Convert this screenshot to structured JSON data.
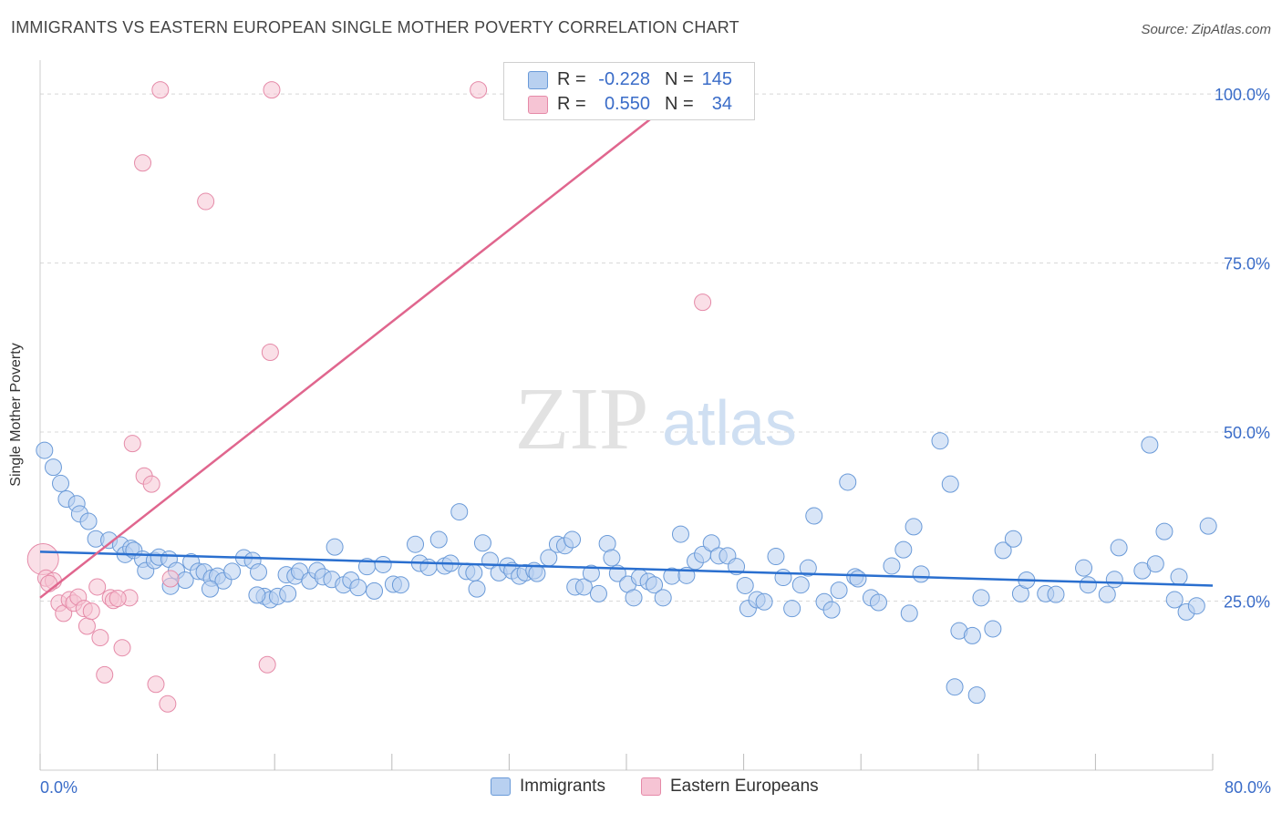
{
  "header": {
    "title": "IMMIGRANTS VS EASTERN EUROPEAN SINGLE MOTHER POVERTY CORRELATION CHART",
    "source": "Source: ZipAtlas.com"
  },
  "watermark": {
    "zip": "ZIP",
    "atlas": "atlas"
  },
  "colors": {
    "blue_fill": "#b8d0f0",
    "blue_stroke": "#6a9ad8",
    "blue_line": "#2a6fcf",
    "pink_fill": "#f6c4d4",
    "pink_stroke": "#e58aa8",
    "pink_line": "#e0668e",
    "axis_text": "#3a6cc8",
    "grid": "#d8d8d8"
  },
  "legend": {
    "rows": [
      {
        "r_label": "R =",
        "r_value": "-0.228",
        "n_label": "N =",
        "n_value": "145"
      },
      {
        "r_label": "R =",
        "r_value": "0.550",
        "n_label": "N =",
        "n_value": "34"
      }
    ]
  },
  "bottom_legend": {
    "series1": "Immigrants",
    "series2": "Eastern Europeans"
  },
  "chart_data": {
    "type": "scatter",
    "title": "IMMIGRANTS VS EASTERN EUROPEAN SINGLE MOTHER POVERTY CORRELATION CHART",
    "xlabel": "",
    "ylabel": "Single Mother Poverty",
    "xlim": [
      0,
      80
    ],
    "ylim": [
      0,
      105
    ],
    "x_tick_labels": [
      "0.0%",
      "80.0%"
    ],
    "y_ticks": [
      25,
      50,
      75,
      100
    ],
    "y_tick_labels": [
      "25.0%",
      "50.0%",
      "75.0%",
      "100.0%"
    ],
    "grid": true,
    "legend_position": "top-center",
    "series": [
      {
        "name": "Immigrants",
        "color": "#6a9ad8",
        "trend": {
          "x": [
            0,
            80
          ],
          "y": [
            32.3,
            27.3
          ]
        },
        "points": [
          [
            0.3,
            47.3
          ],
          [
            0.9,
            44.8
          ],
          [
            1.4,
            42.4
          ],
          [
            1.8,
            40.1
          ],
          [
            2.5,
            39.4
          ],
          [
            2.7,
            37.9
          ],
          [
            3.3,
            36.8
          ],
          [
            3.8,
            34.2
          ],
          [
            4.7,
            34.0
          ],
          [
            5.5,
            33.3
          ],
          [
            5.8,
            31.9
          ],
          [
            6.2,
            32.8
          ],
          [
            6.4,
            32.5
          ],
          [
            7.0,
            31.2
          ],
          [
            7.2,
            29.5
          ],
          [
            7.8,
            31.0
          ],
          [
            8.1,
            31.5
          ],
          [
            8.8,
            31.2
          ],
          [
            9.3,
            29.5
          ],
          [
            9.9,
            28.1
          ],
          [
            10.3,
            30.8
          ],
          [
            10.8,
            29.4
          ],
          [
            11.2,
            29.3
          ],
          [
            11.7,
            28.4
          ],
          [
            12.1,
            28.7
          ],
          [
            12.5,
            28.0
          ],
          [
            13.1,
            29.4
          ],
          [
            13.9,
            31.4
          ],
          [
            14.5,
            31.0
          ],
          [
            14.9,
            29.3
          ],
          [
            15.3,
            25.7
          ],
          [
            15.7,
            25.2
          ],
          [
            16.2,
            25.7
          ],
          [
            16.8,
            28.9
          ],
          [
            17.4,
            28.7
          ],
          [
            17.7,
            29.4
          ],
          [
            18.4,
            28.0
          ],
          [
            18.9,
            29.5
          ],
          [
            19.3,
            28.6
          ],
          [
            20.1,
            33.0
          ],
          [
            19.9,
            28.2
          ],
          [
            20.7,
            27.4
          ],
          [
            21.2,
            28.1
          ],
          [
            21.7,
            27.0
          ],
          [
            22.3,
            30.1
          ],
          [
            22.8,
            26.5
          ],
          [
            23.4,
            30.4
          ],
          [
            24.1,
            27.5
          ],
          [
            24.6,
            27.4
          ],
          [
            25.6,
            33.4
          ],
          [
            25.9,
            30.6
          ],
          [
            26.5,
            30.0
          ],
          [
            27.2,
            34.1
          ],
          [
            27.6,
            30.2
          ],
          [
            28.0,
            30.6
          ],
          [
            28.6,
            38.2
          ],
          [
            29.1,
            29.4
          ],
          [
            29.6,
            29.2
          ],
          [
            30.2,
            33.6
          ],
          [
            30.7,
            31.0
          ],
          [
            31.3,
            29.2
          ],
          [
            31.9,
            30.2
          ],
          [
            32.2,
            29.5
          ],
          [
            32.7,
            28.7
          ],
          [
            33.1,
            29.2
          ],
          [
            33.7,
            29.5
          ],
          [
            33.9,
            29.1
          ],
          [
            34.7,
            31.4
          ],
          [
            35.3,
            33.4
          ],
          [
            35.8,
            33.2
          ],
          [
            36.3,
            34.1
          ],
          [
            36.5,
            27.1
          ],
          [
            37.1,
            27.1
          ],
          [
            37.6,
            29.1
          ],
          [
            38.1,
            26.1
          ],
          [
            38.7,
            33.5
          ],
          [
            39.0,
            31.4
          ],
          [
            39.4,
            29.1
          ],
          [
            40.1,
            27.5
          ],
          [
            40.5,
            25.5
          ],
          [
            40.9,
            28.5
          ],
          [
            41.5,
            27.9
          ],
          [
            41.9,
            27.4
          ],
          [
            42.5,
            25.5
          ],
          [
            43.1,
            28.7
          ],
          [
            43.7,
            34.9
          ],
          [
            44.1,
            28.8
          ],
          [
            44.7,
            30.9
          ],
          [
            45.2,
            31.9
          ],
          [
            45.8,
            33.6
          ],
          [
            46.3,
            31.7
          ],
          [
            46.9,
            31.7
          ],
          [
            47.5,
            30.1
          ],
          [
            48.1,
            27.3
          ],
          [
            48.3,
            23.9
          ],
          [
            48.9,
            25.2
          ],
          [
            49.4,
            24.9
          ],
          [
            50.2,
            31.6
          ],
          [
            50.7,
            28.5
          ],
          [
            51.3,
            23.9
          ],
          [
            51.9,
            27.4
          ],
          [
            52.4,
            29.9
          ],
          [
            52.8,
            37.6
          ],
          [
            53.5,
            24.9
          ],
          [
            54.0,
            23.7
          ],
          [
            54.5,
            26.6
          ],
          [
            55.1,
            42.6
          ],
          [
            55.6,
            28.6
          ],
          [
            55.8,
            28.3
          ],
          [
            56.7,
            25.5
          ],
          [
            57.2,
            24.8
          ],
          [
            58.1,
            30.2
          ],
          [
            58.9,
            32.6
          ],
          [
            59.6,
            36.0
          ],
          [
            60.1,
            29.0
          ],
          [
            61.4,
            48.7
          ],
          [
            62.1,
            42.3
          ],
          [
            62.7,
            20.6
          ],
          [
            63.6,
            19.9
          ],
          [
            64.2,
            25.5
          ],
          [
            65.0,
            20.9
          ],
          [
            65.7,
            32.5
          ],
          [
            66.4,
            34.2
          ],
          [
            66.9,
            26.1
          ],
          [
            67.3,
            28.1
          ],
          [
            68.6,
            26.1
          ],
          [
            69.3,
            26.0
          ],
          [
            71.2,
            29.9
          ],
          [
            71.5,
            27.4
          ],
          [
            72.8,
            26.0
          ],
          [
            73.3,
            28.2
          ],
          [
            73.6,
            32.9
          ],
          [
            75.2,
            29.5
          ],
          [
            75.7,
            48.1
          ],
          [
            76.1,
            30.5
          ],
          [
            76.7,
            35.3
          ],
          [
            77.4,
            25.2
          ],
          [
            77.7,
            28.6
          ],
          [
            78.2,
            23.4
          ],
          [
            78.9,
            24.3
          ],
          [
            79.7,
            36.1
          ],
          [
            62.4,
            12.3
          ],
          [
            63.9,
            11.1
          ],
          [
            16.9,
            26.1
          ],
          [
            11.6,
            26.8
          ],
          [
            59.3,
            23.2
          ],
          [
            8.9,
            27.2
          ],
          [
            14.8,
            25.9
          ],
          [
            29.8,
            26.8
          ]
        ]
      },
      {
        "name": "Eastern Europeans",
        "color": "#e58aa8",
        "trend": {
          "x": [
            0,
            45
          ],
          "y": [
            25.5,
            102
          ]
        },
        "points": [
          [
            0.2,
            31.2
          ],
          [
            0.4,
            28.4
          ],
          [
            0.9,
            28.0
          ],
          [
            1.3,
            24.7
          ],
          [
            1.6,
            23.2
          ],
          [
            2.0,
            25.2
          ],
          [
            2.3,
            24.7
          ],
          [
            2.6,
            25.6
          ],
          [
            3.0,
            23.9
          ],
          [
            3.2,
            21.3
          ],
          [
            3.5,
            23.5
          ],
          [
            3.9,
            27.1
          ],
          [
            4.1,
            19.6
          ],
          [
            4.4,
            14.1
          ],
          [
            4.8,
            25.5
          ],
          [
            5.0,
            25.1
          ],
          [
            5.6,
            18.1
          ],
          [
            6.1,
            25.5
          ],
          [
            6.3,
            48.3
          ],
          [
            7.1,
            43.5
          ],
          [
            7.6,
            42.3
          ],
          [
            7.9,
            12.7
          ],
          [
            8.7,
            9.8
          ],
          [
            8.9,
            28.3
          ],
          [
            11.3,
            84.1
          ],
          [
            7.0,
            89.8
          ],
          [
            8.2,
            100.6
          ],
          [
            15.8,
            100.6
          ],
          [
            29.9,
            100.6
          ],
          [
            15.5,
            15.6
          ],
          [
            15.7,
            61.8
          ],
          [
            45.2,
            69.2
          ],
          [
            0.6,
            27.6
          ],
          [
            5.3,
            25.4
          ]
        ]
      }
    ]
  }
}
